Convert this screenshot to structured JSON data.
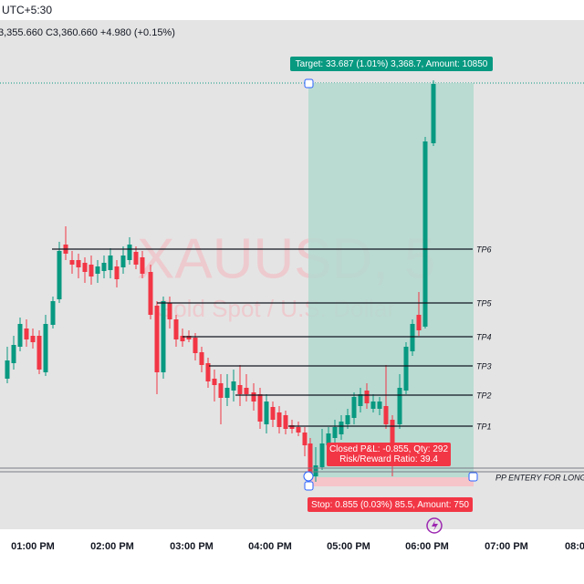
{
  "header": {
    "timezone": "UTC+5:30",
    "ohlc": "3,355.660  C3,360.660  +4.980 (+0.15%)"
  },
  "watermark": {
    "symbol": "XAUUSD, 5",
    "description": "Gold Spot / U.S. Dollar"
  },
  "position": {
    "target": "Target: 33.687 (1.01%) 3,368.7, Amount: 10850",
    "closed": "Closed P&L: -0.855, Qty: 292",
    "ratio": "Risk/Reward Ratio: 39.4",
    "stop": "Stop: 0.855 (0.03%) 85.5, Amount: 750"
  },
  "levels": [
    "TP6",
    "TP5",
    "TP4",
    "TP3",
    "TP2",
    "TP1"
  ],
  "entry_label": "PP ENTERY FOR LONG",
  "time_axis": [
    "01:00 PM",
    "02:00 PM",
    "03:00 PM",
    "04:00 PM",
    "05:00 PM",
    "06:00 PM",
    "07:00 PM",
    "08:0"
  ]
}
